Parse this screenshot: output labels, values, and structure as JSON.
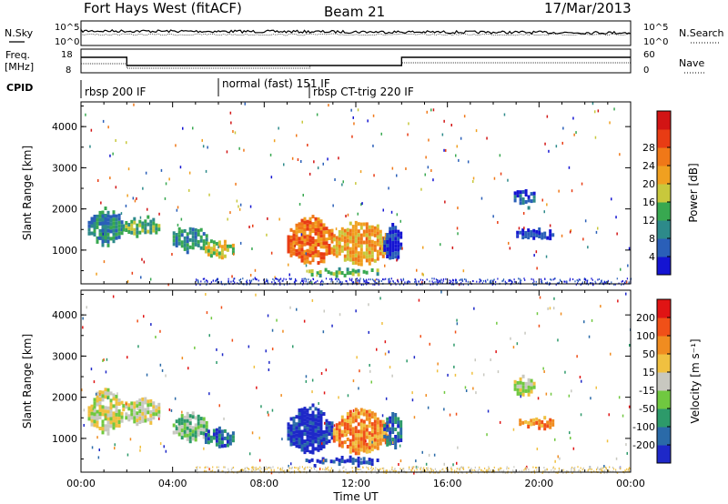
{
  "header": {
    "station": "Fort Hays West (fitACF)",
    "beam": "Beam 21",
    "date": "17/Mar/2013"
  },
  "noise_panel": {
    "left_label": "N.Sky",
    "right_label": "N.Search",
    "left_ticks": [
      "10^5",
      "10^0"
    ],
    "right_ticks": [
      "10^5",
      "10^0"
    ]
  },
  "freq_panel": {
    "left_label_1": "Freq.",
    "left_label_2": "[MHz]",
    "left_ticks": [
      "18",
      "8"
    ],
    "right_label": "Nave",
    "right_ticks": [
      "60",
      "0"
    ]
  },
  "cpid": {
    "label": "CPID",
    "modes": [
      {
        "start_hour": 0.0,
        "name": "rbsp 200 IF"
      },
      {
        "start_hour": 6.0,
        "name": "normal (fast) 151 IF"
      },
      {
        "start_hour": 10.0,
        "name": "rbsp CT-trig 220 IF"
      }
    ]
  },
  "chart_data": [
    {
      "type": "heatmap",
      "name": "power-panel",
      "ylabel": "Slant Range [km]",
      "xlabel": "",
      "x_range_hours": [
        0,
        24
      ],
      "ylim": [
        180,
        4600
      ],
      "yticks": [
        "1000",
        "2000",
        "3000",
        "4000"
      ],
      "xticks": [],
      "colorbar": {
        "label": "Power [dB]",
        "ticks": [
          "4",
          "8",
          "12",
          "16",
          "20",
          "24",
          "28"
        ],
        "colors": [
          "#1414d2",
          "#2a5fb8",
          "#2d8a8a",
          "#38a850",
          "#c8c83c",
          "#f0a020",
          "#f07818",
          "#e83c14",
          "#d21414"
        ]
      },
      "echo_regions": [
        {
          "t0": 0.3,
          "t1": 1.8,
          "r0": 1200,
          "r1": 2000,
          "level": 2
        },
        {
          "t0": 1.8,
          "t1": 3.4,
          "r0": 1400,
          "r1": 1800,
          "level": 3
        },
        {
          "t0": 4.0,
          "t1": 5.5,
          "r0": 1000,
          "r1": 1600,
          "level": 2
        },
        {
          "t0": 5.4,
          "t1": 6.6,
          "r0": 850,
          "r1": 1250,
          "level": 4
        },
        {
          "t0": 9.0,
          "t1": 11.0,
          "r0": 700,
          "r1": 1800,
          "level": 6
        },
        {
          "t0": 11.0,
          "t1": 13.4,
          "r0": 700,
          "r1": 1700,
          "level": 5
        },
        {
          "t0": 13.2,
          "t1": 14.0,
          "r0": 800,
          "r1": 1600,
          "level": 0
        },
        {
          "t0": 18.9,
          "t1": 19.8,
          "r0": 2100,
          "r1": 2500,
          "level": 1
        },
        {
          "t0": 19.0,
          "t1": 20.6,
          "r0": 1300,
          "r1": 1500,
          "level": 0
        },
        {
          "t0": 9.8,
          "t1": 13.0,
          "r0": 420,
          "r1": 520,
          "level": 3
        }
      ]
    },
    {
      "type": "heatmap",
      "name": "velocity-panel",
      "ylabel": "Slant Range [km]",
      "xlabel": "Time UT",
      "x_range_hours": [
        0,
        24
      ],
      "ylim": [
        180,
        4600
      ],
      "yticks": [
        "1000",
        "2000",
        "3000",
        "4000"
      ],
      "xticks": [
        "00:00",
        "04:00",
        "08:00",
        "12:00",
        "16:00",
        "20:00",
        "00:00"
      ],
      "colorbar": {
        "label": "Velocity [m s⁻¹]",
        "ticks": [
          "200",
          "100",
          "50",
          "15",
          "-15",
          "-50",
          "-100",
          "-200"
        ],
        "colors": [
          "#1e28c8",
          "#2a6aa8",
          "#2d9a6a",
          "#70c840",
          "#c8c8c0",
          "#f0c040",
          "#f08c20",
          "#f05018",
          "#e01414"
        ]
      },
      "echo_regions": [
        {
          "t0": 0.3,
          "t1": 1.8,
          "r0": 1200,
          "r1": 2200,
          "level": 4
        },
        {
          "t0": 1.8,
          "t1": 3.4,
          "r0": 1400,
          "r1": 2000,
          "level": 4
        },
        {
          "t0": 4.0,
          "t1": 5.5,
          "r0": 1000,
          "r1": 1600,
          "level": 3
        },
        {
          "t0": 5.4,
          "t1": 6.6,
          "r0": 850,
          "r1": 1250,
          "level": 1
        },
        {
          "t0": 9.0,
          "t1": 11.0,
          "r0": 700,
          "r1": 1800,
          "level": 0
        },
        {
          "t0": 11.0,
          "t1": 13.4,
          "r0": 700,
          "r1": 1700,
          "level": 6
        },
        {
          "t0": 13.2,
          "t1": 14.0,
          "r0": 800,
          "r1": 1600,
          "level": 1
        },
        {
          "t0": 18.9,
          "t1": 19.8,
          "r0": 2100,
          "r1": 2500,
          "level": 4
        },
        {
          "t0": 19.0,
          "t1": 20.6,
          "r0": 1300,
          "r1": 1500,
          "level": 6
        },
        {
          "t0": 9.8,
          "t1": 13.0,
          "r0": 420,
          "r1": 520,
          "level": 0
        }
      ]
    }
  ]
}
